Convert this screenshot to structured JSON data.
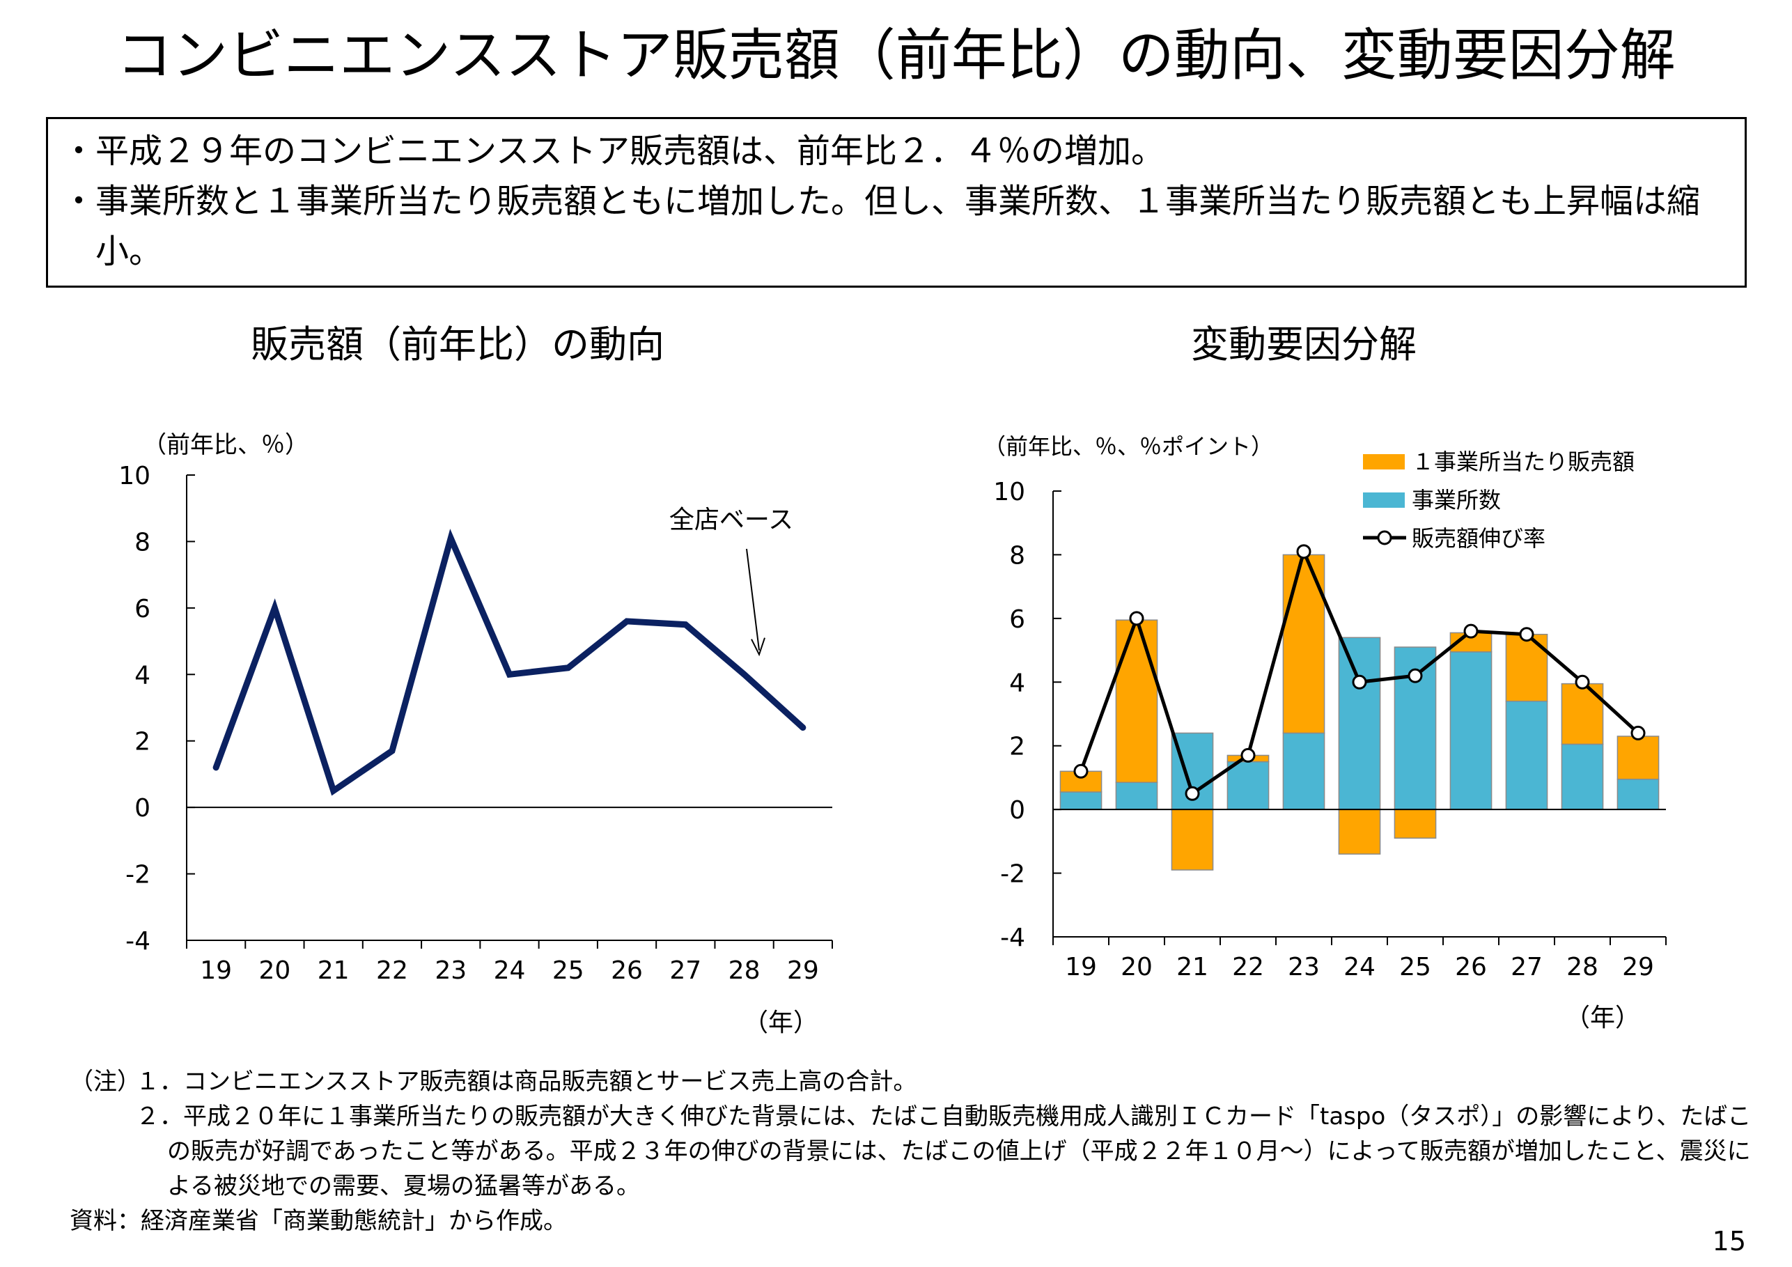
{
  "title": "コンビニエンスストア販売額（前年比）の動向、変動要因分解",
  "summary": [
    "・平成２９年のコンビニエンスストア販売額は、前年比２．４％の増加。",
    "・事業所数と１事業所当たり販売額ともに増加した。但し、事業所数、１事業所当たり販売額とも上昇幅は縮小。"
  ],
  "chart_data": [
    {
      "type": "line",
      "title": "販売額（前年比）の動向",
      "ylabel": "（前年比、％）",
      "xlabel": "（年）",
      "annotation": "全店ベース",
      "categories": [
        "19",
        "20",
        "21",
        "22",
        "23",
        "24",
        "25",
        "26",
        "27",
        "28",
        "29"
      ],
      "ylim": [
        -4,
        10
      ],
      "yticks": [
        10,
        8,
        6,
        4,
        2,
        0,
        -2,
        -4
      ],
      "series": [
        {
          "values": [
            1.2,
            6.0,
            0.5,
            1.7,
            8.1,
            4.0,
            4.2,
            5.6,
            5.5,
            4.0,
            2.4
          ]
        }
      ],
      "colors": {
        "line": "#0b2161"
      }
    },
    {
      "type": "bar",
      "title": "変動要因分解",
      "ylabel": "（前年比、％、％ポイント）",
      "xlabel": "（年）",
      "categories": [
        "19",
        "20",
        "21",
        "22",
        "23",
        "24",
        "25",
        "26",
        "27",
        "28",
        "29"
      ],
      "ylim": [
        -4,
        10
      ],
      "yticks": [
        10,
        8,
        6,
        4,
        2,
        0,
        -2,
        -4
      ],
      "legend_position": "top-right",
      "series": [
        {
          "name": "１事業所当たり販売額",
          "values": [
            0.65,
            5.1,
            -1.9,
            0.2,
            5.6,
            -1.4,
            -0.9,
            0.6,
            2.1,
            1.9,
            1.35
          ],
          "color": "#ffa500"
        },
        {
          "name": "事業所数",
          "values": [
            0.55,
            0.85,
            2.4,
            1.5,
            2.4,
            5.4,
            5.1,
            4.95,
            3.4,
            2.05,
            0.95
          ],
          "color": "#4bb6d3"
        },
        {
          "name": "販売額伸び率",
          "values": [
            1.2,
            6.0,
            0.5,
            1.7,
            8.1,
            4.0,
            4.2,
            5.6,
            5.5,
            4.0,
            2.4
          ],
          "color": "#000000"
        }
      ]
    }
  ],
  "notes": {
    "label": "（注）",
    "items": [
      "１．コンビニエンスストア販売額は商品販売額とサービス売上高の合計。",
      "２．平成２０年に１事業所当たりの販売額が大きく伸びた背景には、たばこ自動販売機用成人識別ＩＣカード「taspo（タスポ）」の影響により、たばこの販売が好調であったこと等がある。平成２３年の伸びの背景には、たばこの値上げ（平成２２年１０月～）によって販売額が増加したこと、震災による被災地での需要、夏場の猛暑等がある。"
    ],
    "source": "資料：経済産業省「商業動態統計」から作成。"
  },
  "page_number": "15"
}
